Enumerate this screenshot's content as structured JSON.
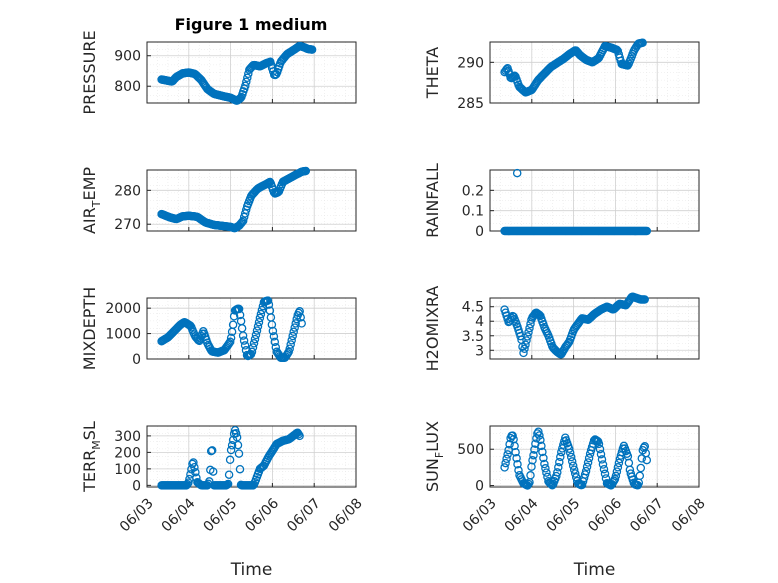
{
  "figure": {
    "title": "Figure 1 medium"
  },
  "colors": {
    "marker": "#0072BD",
    "axis": "#262626",
    "grid": "#d0d0d0",
    "minor_grid": "#e6e6e6"
  },
  "chart_data": [
    {
      "type": "scatter",
      "ylabel_parts": [
        "PRESSURE"
      ],
      "xlabel": "",
      "x_tick_labels": [],
      "ylim": [
        745,
        945
      ],
      "yticks": [
        800,
        900
      ],
      "grid": true,
      "knots": [
        [
          3.35,
          822
        ],
        [
          3.5,
          818
        ],
        [
          3.6,
          815
        ],
        [
          3.7,
          830
        ],
        [
          3.85,
          842
        ],
        [
          4.0,
          845
        ],
        [
          4.15,
          840
        ],
        [
          4.3,
          820
        ],
        [
          4.45,
          790
        ],
        [
          4.6,
          775
        ],
        [
          4.8,
          768
        ],
        [
          5.0,
          762
        ],
        [
          5.15,
          752
        ],
        [
          5.25,
          762
        ],
        [
          5.35,
          800
        ],
        [
          5.45,
          855
        ],
        [
          5.55,
          870
        ],
        [
          5.7,
          865
        ],
        [
          5.85,
          875
        ],
        [
          5.95,
          880
        ],
        [
          6.05,
          835
        ],
        [
          6.1,
          840
        ],
        [
          6.2,
          880
        ],
        [
          6.35,
          905
        ],
        [
          6.5,
          918
        ],
        [
          6.65,
          932
        ],
        [
          6.75,
          928
        ],
        [
          6.85,
          922
        ],
        [
          6.95,
          920
        ]
      ]
    },
    {
      "type": "scatter",
      "ylabel_parts": [
        "THETA"
      ],
      "xlabel": "",
      "x_tick_labels": [],
      "ylim": [
        285,
        292.5
      ],
      "yticks": [
        285,
        290
      ],
      "grid": true,
      "knots": [
        [
          3.35,
          288.8
        ],
        [
          3.42,
          289.3
        ],
        [
          3.5,
          288.0
        ],
        [
          3.6,
          288.4
        ],
        [
          3.7,
          287.0
        ],
        [
          3.85,
          286.3
        ],
        [
          4.0,
          286.6
        ],
        [
          4.15,
          287.8
        ],
        [
          4.3,
          288.6
        ],
        [
          4.45,
          289.4
        ],
        [
          4.6,
          289.9
        ],
        [
          4.75,
          290.4
        ],
        [
          4.9,
          291.0
        ],
        [
          5.05,
          291.5
        ],
        [
          5.15,
          290.9
        ],
        [
          5.3,
          290.3
        ],
        [
          5.45,
          290.0
        ],
        [
          5.6,
          290.5
        ],
        [
          5.75,
          292.0
        ],
        [
          5.9,
          291.8
        ],
        [
          6.05,
          291.5
        ],
        [
          6.15,
          289.8
        ],
        [
          6.3,
          289.6
        ],
        [
          6.45,
          291.5
        ],
        [
          6.55,
          292.3
        ],
        [
          6.65,
          292.4
        ]
      ]
    },
    {
      "type": "scatter",
      "ylabel_parts": [
        "AIR",
        "T",
        "EMP"
      ],
      "xlabel": "",
      "x_tick_labels": [],
      "ylim": [
        268,
        286
      ],
      "yticks": [
        270,
        280
      ],
      "grid": true,
      "knots": [
        [
          3.35,
          273.0
        ],
        [
          3.55,
          272.0
        ],
        [
          3.7,
          271.5
        ],
        [
          3.85,
          272.3
        ],
        [
          4.0,
          272.5
        ],
        [
          4.2,
          272.2
        ],
        [
          4.4,
          270.5
        ],
        [
          4.6,
          269.8
        ],
        [
          4.8,
          269.5
        ],
        [
          5.0,
          269.2
        ],
        [
          5.1,
          268.8
        ],
        [
          5.2,
          269.5
        ],
        [
          5.3,
          271.0
        ],
        [
          5.4,
          275.5
        ],
        [
          5.5,
          278.5
        ],
        [
          5.65,
          280.5
        ],
        [
          5.8,
          281.5
        ],
        [
          5.95,
          282.5
        ],
        [
          6.05,
          279.0
        ],
        [
          6.15,
          279.5
        ],
        [
          6.25,
          282.5
        ],
        [
          6.4,
          283.5
        ],
        [
          6.55,
          284.5
        ],
        [
          6.7,
          285.5
        ],
        [
          6.8,
          285.7
        ]
      ]
    },
    {
      "type": "scatter",
      "ylabel_parts": [
        "RAINFALL"
      ],
      "xlabel": "",
      "x_tick_labels": [],
      "ylim": [
        0,
        0.3
      ],
      "yticks": [
        0,
        0.1,
        0.2
      ],
      "grid": true,
      "knots": [
        [
          3.35,
          0
        ],
        [
          6.75,
          0
        ]
      ],
      "extra_points": [
        [
          3.65,
          0.285
        ]
      ]
    },
    {
      "type": "scatter",
      "ylabel_parts": [
        "MIXDEPTH"
      ],
      "xlabel": "",
      "x_tick_labels": [],
      "ylim": [
        0,
        2400
      ],
      "yticks": [
        0,
        1000,
        2000
      ],
      "grid": true,
      "knots": [
        [
          3.35,
          700
        ],
        [
          3.5,
          850
        ],
        [
          3.65,
          1100
        ],
        [
          3.8,
          1350
        ],
        [
          3.9,
          1450
        ],
        [
          4.05,
          1300
        ],
        [
          4.15,
          900
        ],
        [
          4.25,
          700
        ],
        [
          4.35,
          1100
        ],
        [
          4.45,
          600
        ],
        [
          4.55,
          300
        ],
        [
          4.7,
          250
        ],
        [
          4.85,
          350
        ],
        [
          5.0,
          700
        ],
        [
          5.05,
          1200
        ],
        [
          5.1,
          1900
        ],
        [
          5.2,
          2000
        ],
        [
          5.25,
          1500
        ],
        [
          5.3,
          900
        ],
        [
          5.4,
          100
        ],
        [
          5.5,
          200
        ],
        [
          5.6,
          900
        ],
        [
          5.7,
          1600
        ],
        [
          5.8,
          2250
        ],
        [
          5.9,
          2300
        ],
        [
          5.95,
          1800
        ],
        [
          6.0,
          1200
        ],
        [
          6.1,
          300
        ],
        [
          6.2,
          50
        ],
        [
          6.3,
          50
        ],
        [
          6.4,
          300
        ],
        [
          6.5,
          1000
        ],
        [
          6.6,
          1700
        ],
        [
          6.65,
          1900
        ],
        [
          6.7,
          1400
        ]
      ]
    },
    {
      "type": "scatter",
      "ylabel_parts": [
        "H2OMIXRA"
      ],
      "xlabel": "",
      "x_tick_labels": [],
      "ylim": [
        2.7,
        4.8
      ],
      "yticks": [
        3,
        3.5,
        4,
        4.5
      ],
      "grid": true,
      "knots": [
        [
          3.35,
          4.4
        ],
        [
          3.45,
          3.95
        ],
        [
          3.55,
          4.2
        ],
        [
          3.65,
          3.85
        ],
        [
          3.75,
          3.4
        ],
        [
          3.8,
          2.9
        ],
        [
          3.9,
          3.5
        ],
        [
          4.0,
          4.1
        ],
        [
          4.1,
          4.3
        ],
        [
          4.2,
          4.2
        ],
        [
          4.3,
          3.8
        ],
        [
          4.4,
          3.5
        ],
        [
          4.5,
          3.1
        ],
        [
          4.6,
          2.95
        ],
        [
          4.7,
          2.85
        ],
        [
          4.8,
          3.1
        ],
        [
          4.9,
          3.3
        ],
        [
          5.0,
          3.7
        ],
        [
          5.1,
          3.9
        ],
        [
          5.2,
          4.1
        ],
        [
          5.35,
          4.05
        ],
        [
          5.5,
          4.25
        ],
        [
          5.65,
          4.4
        ],
        [
          5.8,
          4.5
        ],
        [
          5.95,
          4.4
        ],
        [
          6.1,
          4.6
        ],
        [
          6.25,
          4.55
        ],
        [
          6.4,
          4.85
        ],
        [
          6.6,
          4.75
        ],
        [
          6.7,
          4.75
        ]
      ]
    },
    {
      "type": "scatter",
      "ylabel_parts": [
        "TERR",
        "M",
        "SL"
      ],
      "xlabel": "Time",
      "x_tick_labels": [
        "06/03",
        "06/04",
        "06/05",
        "06/06",
        "06/07",
        "06/08"
      ],
      "ylim": [
        -10,
        360
      ],
      "yticks": [
        0,
        100,
        200,
        300
      ],
      "grid": true,
      "knots": [
        [
          3.35,
          0
        ],
        [
          3.8,
          0
        ],
        [
          3.95,
          0
        ],
        [
          4.0,
          20
        ],
        [
          4.05,
          80
        ],
        [
          4.1,
          150
        ],
        [
          4.15,
          90
        ],
        [
          4.2,
          20
        ],
        [
          4.3,
          0
        ],
        [
          4.45,
          0
        ],
        [
          4.5,
          30
        ],
        [
          4.55,
          270
        ],
        [
          4.6,
          0
        ],
        [
          4.9,
          0
        ],
        [
          4.95,
          10
        ],
        [
          5.0,
          200
        ],
        [
          5.05,
          260
        ],
        [
          5.1,
          340
        ],
        [
          5.15,
          300
        ],
        [
          5.2,
          200
        ],
        [
          5.25,
          0
        ],
        [
          5.55,
          0
        ],
        [
          5.6,
          30
        ],
        [
          5.7,
          100
        ],
        [
          5.8,
          120
        ],
        [
          5.9,
          170
        ],
        [
          6.0,
          210
        ],
        [
          6.1,
          250
        ],
        [
          6.25,
          270
        ],
        [
          6.4,
          280
        ],
        [
          6.5,
          300
        ],
        [
          6.6,
          320
        ],
        [
          6.65,
          300
        ]
      ]
    },
    {
      "type": "scatter",
      "ylabel_parts": [
        "SUN",
        "F",
        "LUX"
      ],
      "xlabel": "Time",
      "x_tick_labels": [
        "06/03",
        "06/04",
        "06/05",
        "06/06",
        "06/07",
        "06/08"
      ],
      "ylim": [
        -20,
        820
      ],
      "yticks": [
        0,
        500
      ],
      "grid": true,
      "knots": [
        [
          3.35,
          250
        ],
        [
          3.45,
          500
        ],
        [
          3.5,
          680
        ],
        [
          3.55,
          690
        ],
        [
          3.6,
          500
        ],
        [
          3.7,
          150
        ],
        [
          3.8,
          30
        ],
        [
          3.9,
          0
        ],
        [
          3.95,
          50
        ],
        [
          4.0,
          300
        ],
        [
          4.05,
          450
        ],
        [
          4.1,
          620
        ],
        [
          4.15,
          760
        ],
        [
          4.2,
          650
        ],
        [
          4.3,
          300
        ],
        [
          4.4,
          50
        ],
        [
          4.5,
          0
        ],
        [
          4.6,
          150
        ],
        [
          4.7,
          450
        ],
        [
          4.8,
          660
        ],
        [
          4.9,
          500
        ],
        [
          5.0,
          250
        ],
        [
          5.1,
          30
        ],
        [
          5.2,
          0
        ],
        [
          5.3,
          200
        ],
        [
          5.4,
          450
        ],
        [
          5.5,
          640
        ],
        [
          5.6,
          600
        ],
        [
          5.7,
          300
        ],
        [
          5.8,
          30
        ],
        [
          5.9,
          0
        ],
        [
          6.0,
          100
        ],
        [
          6.1,
          350
        ],
        [
          6.2,
          550
        ],
        [
          6.3,
          400
        ],
        [
          6.35,
          200
        ],
        [
          6.45,
          20
        ],
        [
          6.55,
          0
        ],
        [
          6.6,
          200
        ],
        [
          6.65,
          480
        ],
        [
          6.7,
          550
        ],
        [
          6.75,
          350
        ]
      ]
    }
  ]
}
